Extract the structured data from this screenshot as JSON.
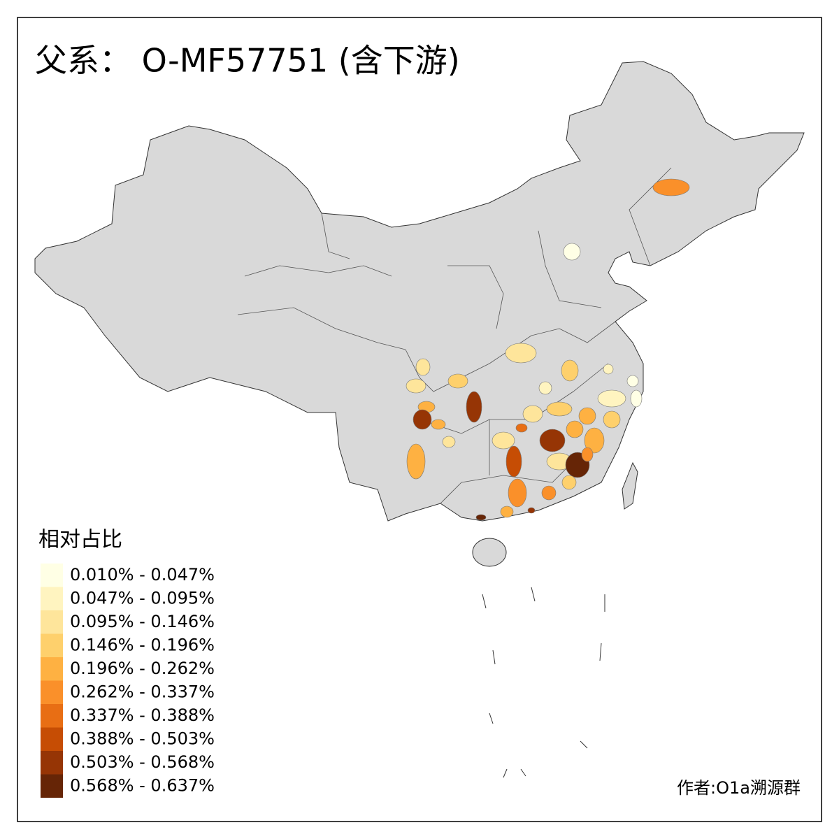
{
  "title": "父系： O-MF57751 (含下游)",
  "legend": {
    "title": "相对占比",
    "items": [
      {
        "label": "0.010% - 0.047%",
        "color": "#ffffe5"
      },
      {
        "label": "0.047% - 0.095%",
        "color": "#fff4c0"
      },
      {
        "label": "0.095% - 0.146%",
        "color": "#fee59b"
      },
      {
        "label": "0.146% - 0.196%",
        "color": "#fed06c"
      },
      {
        "label": "0.196% - 0.262%",
        "color": "#feb142"
      },
      {
        "label": "0.262% - 0.337%",
        "color": "#fa902a"
      },
      {
        "label": "0.337% - 0.388%",
        "color": "#e86e14"
      },
      {
        "label": "0.388% - 0.503%",
        "color": "#c64d04"
      },
      {
        "label": "0.503% - 0.568%",
        "color": "#963505"
      },
      {
        "label": "0.568% - 0.637%",
        "color": "#662506"
      }
    ]
  },
  "credit": "作者:O1a溯源群"
}
